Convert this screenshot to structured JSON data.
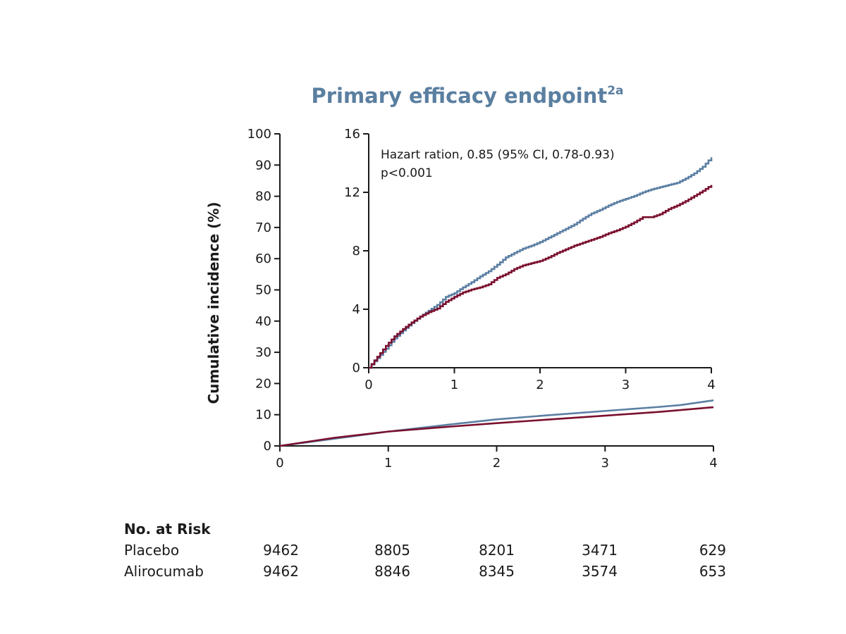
{
  "chart_data": [
    {
      "id": "main",
      "type": "line",
      "title": "Primary efficacy endpoint",
      "title_superscript": "2a",
      "xlabel": "",
      "ylabel": "Cumulative incidence (%)",
      "xlim": [
        0,
        4
      ],
      "ylim": [
        0,
        100
      ],
      "xticks": [
        "0",
        "1",
        "2",
        "3",
        "4"
      ],
      "yticks": [
        "0",
        "10",
        "20",
        "30",
        "40",
        "50",
        "60",
        "70",
        "80",
        "90",
        "100"
      ],
      "grid": false,
      "series": [
        {
          "name": "Placebo",
          "color": "#5b7fa3",
          "x": [
            0,
            0.5,
            1.0,
            1.5,
            2.0,
            2.5,
            3.0,
            3.5,
            3.7,
            4.0
          ],
          "y": [
            0,
            2.3,
            4.6,
            6.6,
            8.5,
            9.9,
            11.2,
            12.5,
            13.1,
            14.6
          ]
        },
        {
          "name": "Alirocumab",
          "color": "#7a0f2e",
          "x": [
            0,
            0.5,
            1.0,
            1.5,
            2.0,
            2.5,
            3.0,
            3.5,
            4.0
          ],
          "y": [
            0,
            2.6,
            4.6,
            6.0,
            7.3,
            8.5,
            9.7,
            10.9,
            12.4
          ]
        }
      ]
    },
    {
      "id": "inset",
      "type": "line",
      "xlim": [
        0,
        4
      ],
      "ylim": [
        0,
        16
      ],
      "xticks": [
        "0",
        "1",
        "2",
        "3",
        "4"
      ],
      "yticks": [
        "0",
        "4",
        "8",
        "12",
        "16"
      ],
      "annotation": [
        "Hazart ration, 0.85 (95% CI, 0.78-0.93)",
        "p<0.001"
      ],
      "series": [
        {
          "name": "Placebo",
          "color": "#5b7fa3",
          "step": true,
          "x": [
            0,
            0.1,
            0.2,
            0.3,
            0.4,
            0.5,
            0.6,
            0.7,
            0.8,
            0.9,
            1.0,
            1.1,
            1.2,
            1.3,
            1.4,
            1.5,
            1.6,
            1.7,
            1.8,
            1.9,
            2.0,
            2.1,
            2.2,
            2.3,
            2.4,
            2.5,
            2.6,
            2.7,
            2.8,
            2.9,
            3.0,
            3.1,
            3.2,
            3.3,
            3.4,
            3.5,
            3.6,
            3.7,
            3.8,
            3.9,
            4.0
          ],
          "y": [
            0,
            0.65,
            1.3,
            2.0,
            2.55,
            3.05,
            3.5,
            3.9,
            4.3,
            4.85,
            5.1,
            5.5,
            5.85,
            6.25,
            6.6,
            7.05,
            7.55,
            7.85,
            8.15,
            8.35,
            8.6,
            8.9,
            9.2,
            9.5,
            9.8,
            10.2,
            10.55,
            10.8,
            11.1,
            11.35,
            11.55,
            11.75,
            12.0,
            12.2,
            12.35,
            12.5,
            12.65,
            12.95,
            13.3,
            13.75,
            14.4
          ]
        },
        {
          "name": "Alirocumab",
          "color": "#7a0f2e",
          "step": true,
          "x": [
            0,
            0.1,
            0.2,
            0.3,
            0.4,
            0.5,
            0.6,
            0.7,
            0.8,
            0.9,
            1.0,
            1.1,
            1.2,
            1.3,
            1.4,
            1.5,
            1.6,
            1.7,
            1.8,
            1.9,
            2.0,
            2.1,
            2.2,
            2.3,
            2.4,
            2.5,
            2.6,
            2.7,
            2.8,
            2.9,
            3.0,
            3.1,
            3.2,
            3.3,
            3.4,
            3.5,
            3.6,
            3.7,
            3.8,
            3.9,
            4.0
          ],
          "y": [
            0,
            0.75,
            1.5,
            2.15,
            2.65,
            3.1,
            3.5,
            3.8,
            4.05,
            4.5,
            4.85,
            5.15,
            5.35,
            5.5,
            5.7,
            6.15,
            6.4,
            6.75,
            7.0,
            7.15,
            7.3,
            7.55,
            7.85,
            8.1,
            8.35,
            8.55,
            8.75,
            8.95,
            9.2,
            9.4,
            9.65,
            9.95,
            10.3,
            10.3,
            10.5,
            10.85,
            11.1,
            11.4,
            11.75,
            12.1,
            12.5
          ]
        }
      ]
    }
  ],
  "risk_table": {
    "title": "No. at Risk",
    "rows": [
      {
        "label": "Placebo",
        "values": [
          "9462",
          "8805",
          "8201",
          "3471",
          "629"
        ]
      },
      {
        "label": "Alirocumab",
        "values": [
          "9462",
          "8846",
          "8345",
          "3574",
          "653"
        ]
      }
    ]
  }
}
